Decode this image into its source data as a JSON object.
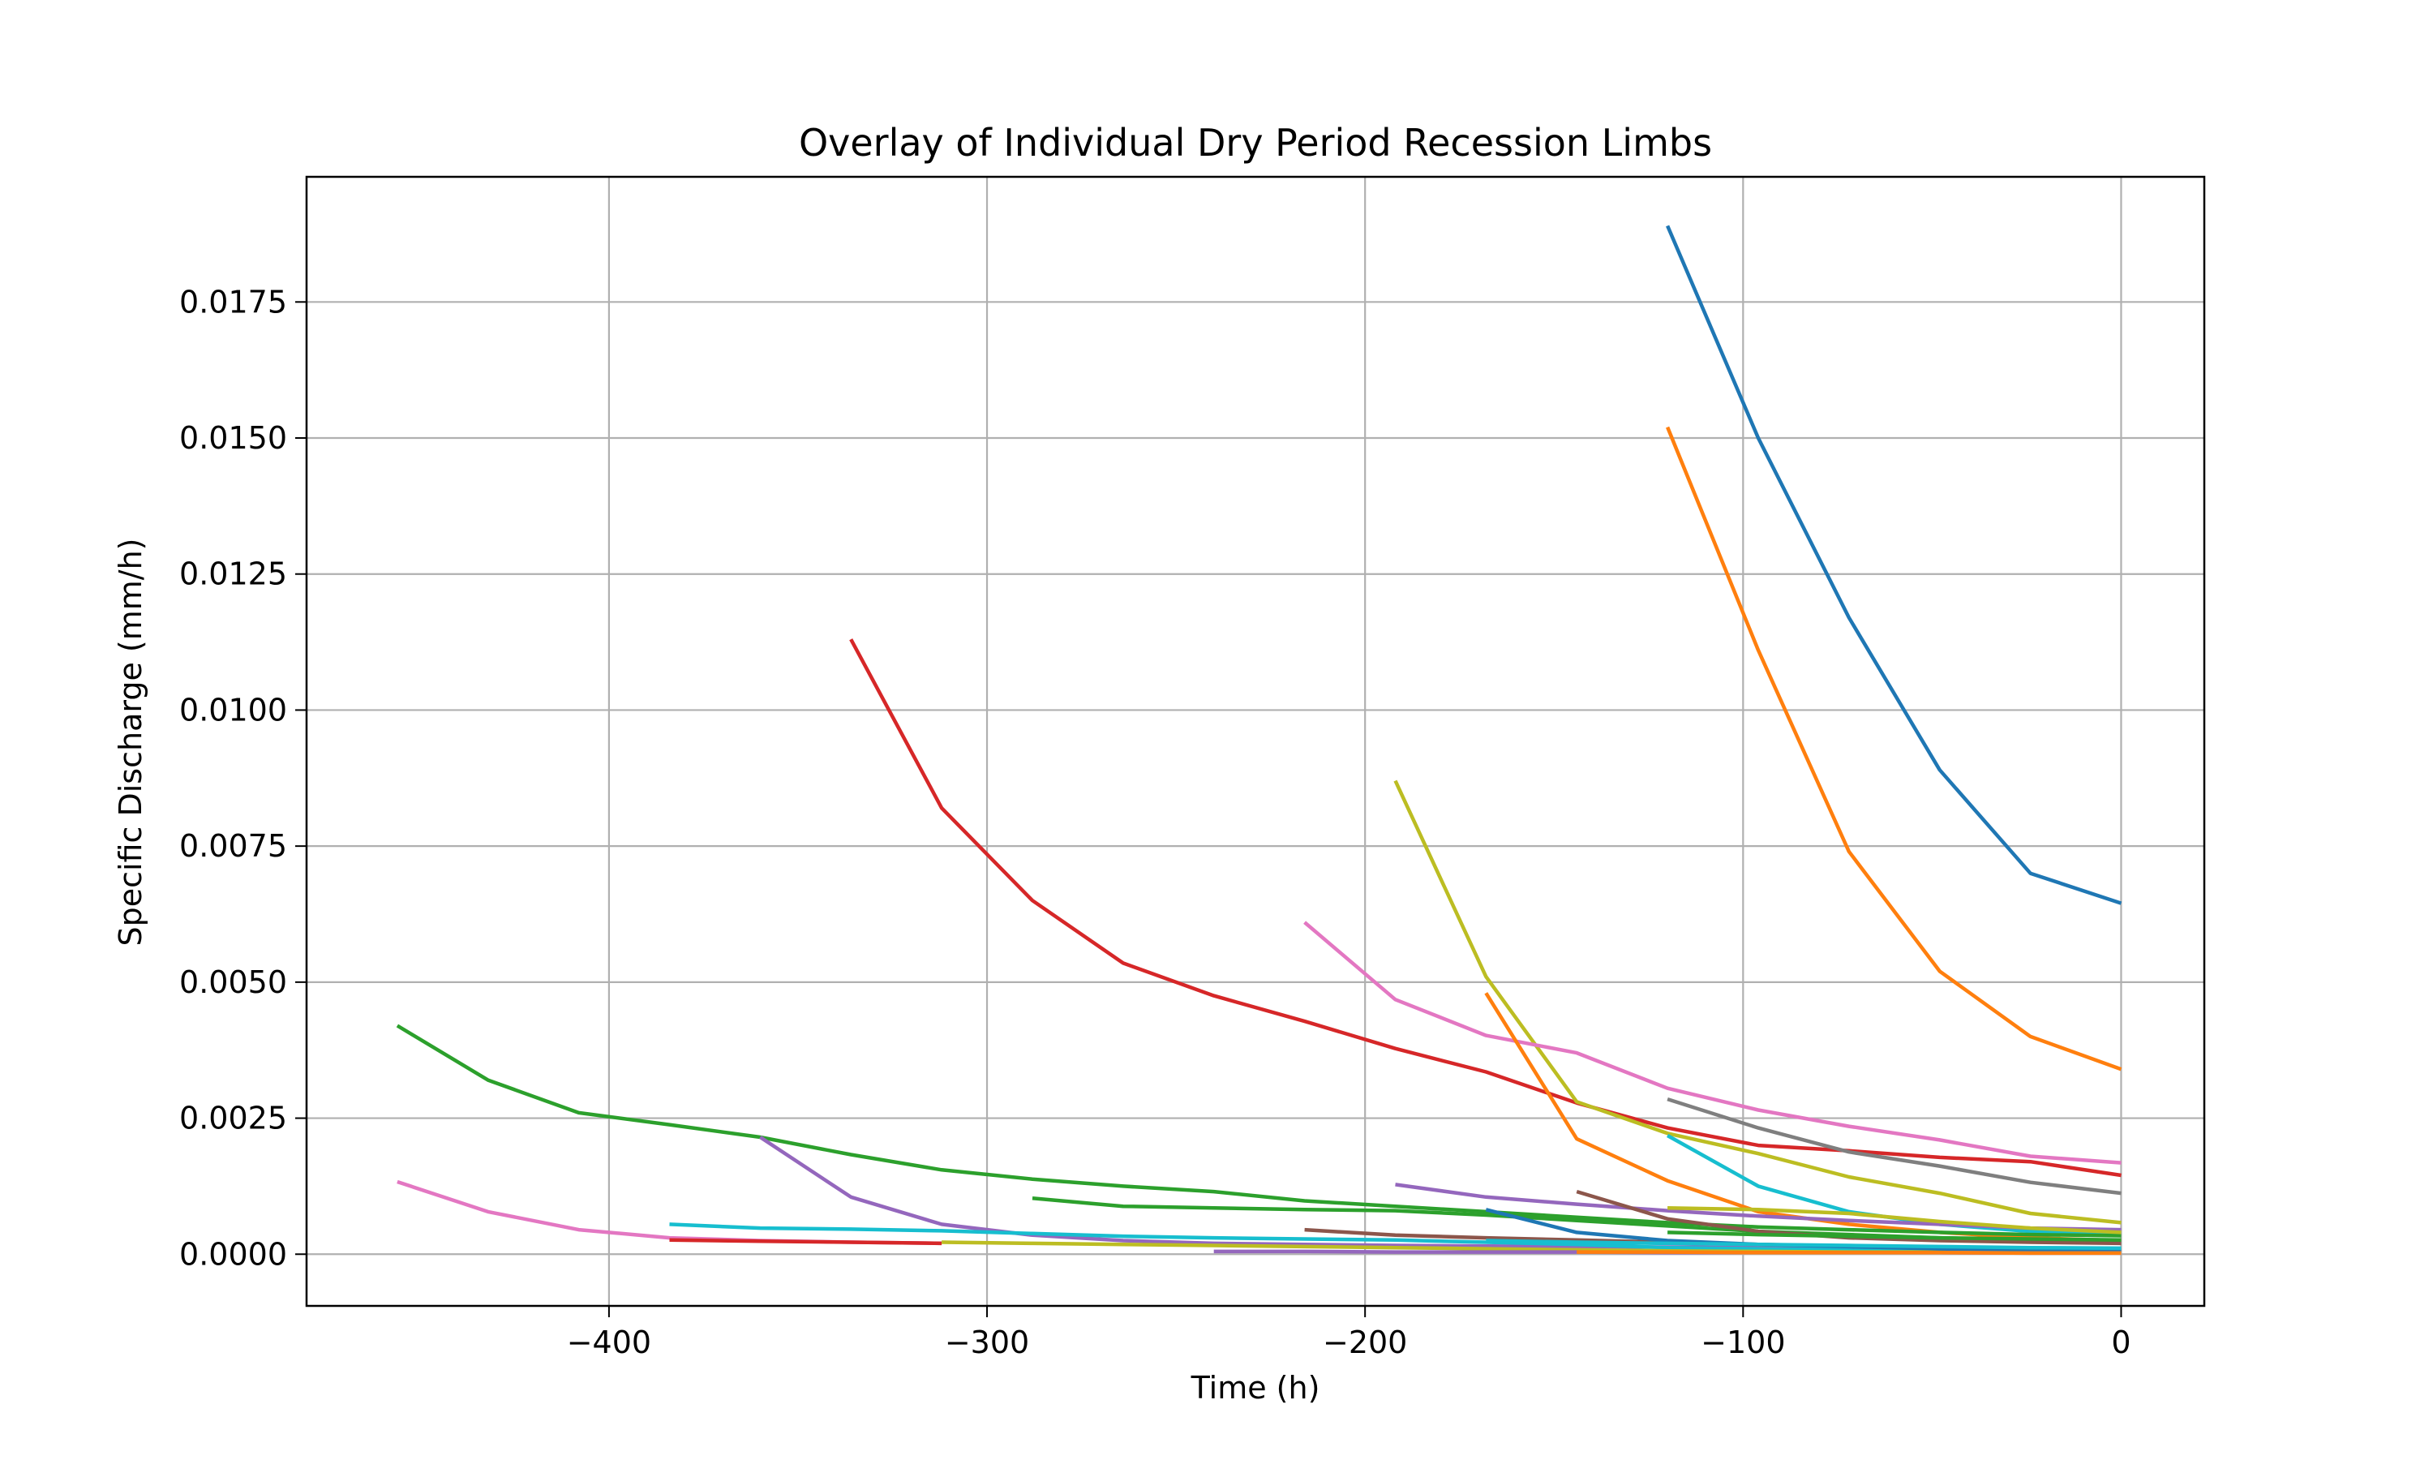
{
  "chart_data": {
    "type": "line",
    "title": "Overlay of Individual Dry Period Recession Limbs",
    "xlabel": "Time (h)",
    "ylabel": "Specific Discharge (mm/h)",
    "xlim": [
      -480,
      22
    ],
    "ylim": [
      -0.00095,
      0.0198
    ],
    "grid": true,
    "legend": "none",
    "xticks": [
      -400,
      -300,
      -200,
      -100,
      0
    ],
    "xtick_labels": [
      "−400",
      "−300",
      "−200",
      "−100",
      "0"
    ],
    "yticks": [
      0.0,
      0.0025,
      0.005,
      0.0075,
      0.01,
      0.0125,
      0.015,
      0.0175
    ],
    "ytick_labels": [
      "0.0000",
      "0.0025",
      "0.0050",
      "0.0075",
      "0.0100",
      "0.0125",
      "0.0150",
      "0.0175"
    ],
    "series": [
      {
        "color": "#1f77b4",
        "points": [
          [
            -120,
            0.0189
          ],
          [
            -96,
            0.015
          ],
          [
            -72,
            0.0117
          ],
          [
            -48,
            0.0089
          ],
          [
            -24,
            0.007
          ],
          [
            0,
            0.00645
          ]
        ]
      },
      {
        "color": "#ff7f0e",
        "points": [
          [
            -120,
            0.0152
          ],
          [
            -96,
            0.0111
          ],
          [
            -72,
            0.0074
          ],
          [
            -48,
            0.0052
          ],
          [
            -24,
            0.004
          ],
          [
            0,
            0.0034
          ]
        ]
      },
      {
        "color": "#d62728",
        "points": [
          [
            -336,
            0.0113
          ],
          [
            -312,
            0.0082
          ],
          [
            -288,
            0.0065
          ],
          [
            -264,
            0.00535
          ],
          [
            -240,
            0.00475
          ],
          [
            -216,
            0.00428
          ],
          [
            -192,
            0.00378
          ],
          [
            -168,
            0.00335
          ],
          [
            -144,
            0.00278
          ],
          [
            -120,
            0.00232
          ],
          [
            -96,
            0.002
          ],
          [
            -72,
            0.0019
          ],
          [
            -48,
            0.00178
          ],
          [
            -24,
            0.0017
          ],
          [
            0,
            0.00145
          ]
        ]
      },
      {
        "color": "#bcbd22",
        "points": [
          [
            -192,
            0.0087
          ],
          [
            -168,
            0.0051
          ],
          [
            -144,
            0.0028
          ],
          [
            -120,
            0.00222
          ],
          [
            -96,
            0.00185
          ],
          [
            -72,
            0.00142
          ],
          [
            -48,
            0.00112
          ],
          [
            -24,
            0.00075
          ],
          [
            0,
            0.00058
          ]
        ]
      },
      {
        "color": "#e377c2",
        "points": [
          [
            -216,
            0.0061
          ],
          [
            -192,
            0.00468
          ],
          [
            -168,
            0.00402
          ],
          [
            -144,
            0.0037
          ],
          [
            -120,
            0.00305
          ],
          [
            -96,
            0.00265
          ],
          [
            -72,
            0.00235
          ],
          [
            -48,
            0.0021
          ],
          [
            -24,
            0.0018
          ],
          [
            0,
            0.00168
          ]
        ]
      },
      {
        "color": "#ff7f0e",
        "points": [
          [
            -168,
            0.0048
          ],
          [
            -144,
            0.00212
          ],
          [
            -120,
            0.00135
          ],
          [
            -96,
            0.00078
          ],
          [
            -72,
            0.00055
          ],
          [
            -48,
            0.0004
          ],
          [
            -24,
            0.0003
          ],
          [
            0,
            0.00025
          ]
        ]
      },
      {
        "color": "#7f7f7f",
        "points": [
          [
            -120,
            0.00285
          ],
          [
            -96,
            0.00232
          ],
          [
            -72,
            0.00188
          ],
          [
            -48,
            0.00162
          ],
          [
            -24,
            0.00132
          ],
          [
            0,
            0.00112
          ]
        ]
      },
      {
        "color": "#17becf",
        "points": [
          [
            -120,
            0.00218
          ],
          [
            -96,
            0.00125
          ],
          [
            -72,
            0.00078
          ],
          [
            -48,
            0.00055
          ],
          [
            -24,
            0.00042
          ],
          [
            0,
            0.00035
          ]
        ]
      },
      {
        "color": "#2ca02c",
        "points": [
          [
            -456,
            0.0042
          ],
          [
            -432,
            0.0032
          ],
          [
            -408,
            0.0026
          ],
          [
            -384,
            0.00238
          ],
          [
            -360,
            0.00215
          ],
          [
            -336,
            0.00183
          ],
          [
            -312,
            0.00155
          ],
          [
            -288,
            0.00138
          ],
          [
            -264,
            0.00125
          ],
          [
            -240,
            0.00115
          ],
          [
            -216,
            0.00098
          ],
          [
            -192,
            0.00088
          ],
          [
            -168,
            0.00078
          ],
          [
            -144,
            0.00068
          ],
          [
            -120,
            0.00058
          ],
          [
            -96,
            0.0005
          ],
          [
            -72,
            0.00045
          ],
          [
            -48,
            0.0004
          ],
          [
            -24,
            0.00036
          ],
          [
            0,
            0.00034
          ]
        ]
      },
      {
        "color": "#2ca02c",
        "points": [
          [
            -288,
            0.00103
          ],
          [
            -264,
            0.00088
          ],
          [
            -240,
            0.00085
          ],
          [
            -216,
            0.00082
          ],
          [
            -192,
            0.0008
          ],
          [
            -168,
            0.00072
          ],
          [
            -144,
            0.00062
          ],
          [
            -120,
            0.00052
          ],
          [
            -96,
            0.00042
          ],
          [
            -72,
            0.00036
          ],
          [
            -48,
            0.0003
          ],
          [
            -24,
            0.00026
          ],
          [
            0,
            0.00022
          ]
        ]
      },
      {
        "color": "#9467bd",
        "points": [
          [
            -360,
            0.00215
          ],
          [
            -336,
            0.00105
          ],
          [
            -312,
            0.00055
          ],
          [
            -288,
            0.00035
          ],
          [
            -264,
            0.00025
          ],
          [
            -240,
            0.0002
          ],
          [
            -216,
            0.00018
          ],
          [
            -192,
            0.00016
          ],
          [
            -168,
            0.00015
          ],
          [
            -144,
            0.00014
          ],
          [
            -120,
            0.00013
          ],
          [
            -96,
            0.00012
          ],
          [
            -72,
            0.00011
          ],
          [
            -48,
            0.0001
          ],
          [
            -24,
            0.0001
          ],
          [
            0,
            0.0001
          ]
        ]
      },
      {
        "color": "#9467bd",
        "points": [
          [
            -192,
            0.00128
          ],
          [
            -168,
            0.00105
          ],
          [
            -144,
            0.00092
          ],
          [
            -120,
            0.0008
          ],
          [
            -96,
            0.0007
          ],
          [
            -72,
            0.00062
          ],
          [
            -48,
            0.00055
          ],
          [
            -24,
            0.00048
          ],
          [
            0,
            0.00045
          ]
        ]
      },
      {
        "color": "#e377c2",
        "points": [
          [
            -456,
            0.00133
          ],
          [
            -432,
            0.00078
          ],
          [
            -408,
            0.00045
          ],
          [
            -384,
            0.0003
          ],
          [
            -360,
            0.00025
          ],
          [
            -336,
            0.00022
          ],
          [
            -312,
            0.0002
          ]
        ]
      },
      {
        "color": "#17becf",
        "points": [
          [
            -384,
            0.00055
          ],
          [
            -360,
            0.00048
          ],
          [
            -336,
            0.00046
          ],
          [
            -312,
            0.00043
          ],
          [
            -288,
            0.00038
          ],
          [
            -264,
            0.00033
          ],
          [
            -240,
            0.0003
          ],
          [
            -216,
            0.00028
          ],
          [
            -192,
            0.00026
          ],
          [
            -168,
            0.00022
          ],
          [
            -144,
            0.00018
          ],
          [
            -120,
            0.00012
          ],
          [
            -96,
            0.0001
          ],
          [
            -72,
            8e-05
          ],
          [
            -48,
            6e-05
          ],
          [
            -24,
            4e-05
          ],
          [
            0,
            3e-05
          ]
        ]
      },
      {
        "color": "#d62728",
        "points": [
          [
            -384,
            0.00026
          ],
          [
            -360,
            0.00024
          ],
          [
            -336,
            0.00022
          ],
          [
            -312,
            0.0002
          ]
        ]
      },
      {
        "color": "#8c564b",
        "points": [
          [
            -144,
            0.00115
          ],
          [
            -120,
            0.00065
          ],
          [
            -96,
            0.00042
          ],
          [
            -72,
            0.0003
          ],
          [
            -48,
            0.00025
          ],
          [
            -24,
            0.00022
          ],
          [
            0,
            0.0002
          ]
        ]
      },
      {
        "color": "#8c564b",
        "points": [
          [
            -216,
            0.00045
          ],
          [
            -192,
            0.00035
          ],
          [
            -168,
            0.0003
          ],
          [
            -144,
            0.00026
          ],
          [
            -120,
            0.00022
          ],
          [
            -96,
            0.00018
          ],
          [
            -72,
            0.00015
          ],
          [
            -48,
            0.00012
          ],
          [
            -24,
            0.0001
          ],
          [
            0,
            8e-05
          ]
        ]
      },
      {
        "color": "#bcbd22",
        "points": [
          [
            -120,
            0.00085
          ],
          [
            -96,
            0.00082
          ],
          [
            -72,
            0.00075
          ],
          [
            -48,
            0.0006
          ],
          [
            -24,
            0.00048
          ],
          [
            0,
            0.0004
          ]
        ]
      },
      {
        "color": "#bcbd22",
        "points": [
          [
            -312,
            0.00022
          ],
          [
            -288,
            0.0002
          ],
          [
            -264,
            0.00018
          ],
          [
            -240,
            0.00016
          ],
          [
            -216,
            0.00014
          ],
          [
            -192,
            0.00012
          ],
          [
            -168,
            0.0001
          ],
          [
            -144,
            8e-05
          ],
          [
            -120,
            6e-05
          ],
          [
            -96,
            5e-05
          ],
          [
            -72,
            4e-05
          ],
          [
            -48,
            4e-05
          ],
          [
            -24,
            3e-05
          ],
          [
            0,
            3e-05
          ]
        ]
      },
      {
        "color": "#1f77b4",
        "points": [
          [
            -168,
            0.00082
          ],
          [
            -144,
            0.0004
          ],
          [
            -120,
            0.00025
          ],
          [
            -96,
            0.00018
          ],
          [
            -72,
            0.00014
          ],
          [
            -48,
            0.0001
          ],
          [
            -24,
            8e-05
          ],
          [
            0,
            6e-05
          ]
        ]
      },
      {
        "color": "#9467bd",
        "points": [
          [
            -240,
            5e-05
          ],
          [
            -216,
            5e-05
          ],
          [
            -192,
            4e-05
          ],
          [
            -168,
            4e-05
          ],
          [
            -144,
            4e-05
          ],
          [
            -120,
            3e-05
          ],
          [
            -96,
            3e-05
          ],
          [
            -72,
            3e-05
          ],
          [
            -48,
            3e-05
          ],
          [
            -24,
            2e-05
          ],
          [
            0,
            2e-05
          ]
        ]
      },
      {
        "color": "#ff7f0e",
        "points": [
          [
            -144,
            4e-05
          ],
          [
            -120,
            4e-05
          ],
          [
            -96,
            3e-05
          ],
          [
            -72,
            3e-05
          ],
          [
            -48,
            3e-05
          ],
          [
            -24,
            2e-05
          ],
          [
            0,
            2e-05
          ]
        ]
      },
      {
        "color": "#17becf",
        "points": [
          [
            -168,
            0.00025
          ],
          [
            -144,
            0.00022
          ],
          [
            -120,
            0.0002
          ],
          [
            -96,
            0.00018
          ],
          [
            -72,
            0.00016
          ],
          [
            -48,
            0.00014
          ],
          [
            -24,
            0.00012
          ],
          [
            0,
            0.00011
          ]
        ]
      },
      {
        "color": "#2ca02c",
        "points": [
          [
            -120,
            0.0004
          ],
          [
            -96,
            0.00036
          ],
          [
            -72,
            0.00033
          ],
          [
            -48,
            0.0003
          ],
          [
            -24,
            0.00028
          ],
          [
            0,
            0.00026
          ]
        ]
      }
    ]
  }
}
